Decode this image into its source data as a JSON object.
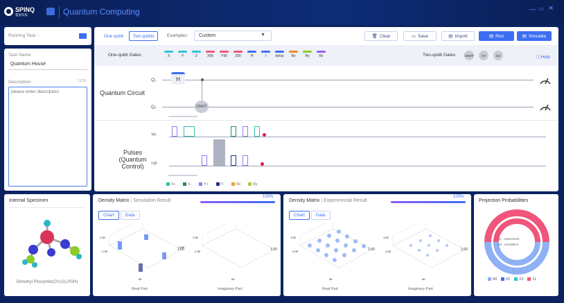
{
  "app": {
    "brand": "SPINQ",
    "brand_sub": "量旋科技",
    "title": "Quantum Computing"
  },
  "left": {
    "running_task_label": "Running Task: -",
    "task_name_label": "Task Name",
    "task_name_value": "Quantum House",
    "description_label": "Description",
    "description_counter": "13/30",
    "description_placeholder": "please enter description"
  },
  "toolbar": {
    "mode_tabs": [
      "One qubit",
      "Two qubits"
    ],
    "examples_label": "Examples:",
    "examples_value": "Custom",
    "clear": "Clear",
    "save": "Save",
    "import": "Import",
    "run": "Run",
    "simulate": "Simulate"
  },
  "gates": {
    "one_label": "One-qubit Gates",
    "one": [
      {
        "t": "X",
        "c": "#2fc4d6"
      },
      {
        "t": "Y",
        "c": "#2fc4d6"
      },
      {
        "t": "Z",
        "c": "#2fc4d6"
      },
      {
        "t": "X90",
        "c": "#f0557b"
      },
      {
        "t": "Y90",
        "c": "#f0557b"
      },
      {
        "t": "Z90",
        "c": "#f0557b"
      },
      {
        "t": "H",
        "c": "#3d6ef2"
      },
      {
        "t": "I",
        "c": "#3d6ef2"
      },
      {
        "t": "delay",
        "c": "#3d6ef2"
      },
      {
        "t": "Rx",
        "c": "#f08a1c"
      },
      {
        "t": "Ry",
        "c": "#8ccb2a"
      },
      {
        "t": "Rz",
        "c": "#9a5cf0"
      }
    ],
    "two_label": "Two-qubit Gates",
    "two": [
      "CNOT",
      "CY",
      "CZ"
    ],
    "help": "Help"
  },
  "circuit": {
    "label": "Quantum Circuit",
    "q0": "Q₁",
    "q1": "Q₂",
    "h_gate": "H",
    "cnot_gate": "CNOT"
  },
  "pulses": {
    "label": "Pulses (Quantum Control)",
    "ch1": "¹H",
    "ch2": "³¹P",
    "legend": [
      {
        "t": "X+",
        "c": "#2fc4a6"
      },
      {
        "t": "X-",
        "c": "#1e8a72"
      },
      {
        "t": "Y+",
        "c": "#8f7cf0"
      },
      {
        "t": "Y-",
        "c": "#23318a"
      },
      {
        "t": "Rx",
        "c": "#e8a23a"
      },
      {
        "t": "Ry",
        "c": "#b8c640"
      }
    ]
  },
  "specimen": {
    "title": "Internal Specimen",
    "caption": "Dimethyl Phosphite(CH₃O)₂POH)"
  },
  "dm_sim": {
    "title": "Density Matrix",
    "sub": "Simulation Result",
    "percent": "100%",
    "tabs": [
      "Chart",
      "Data"
    ],
    "real": "Real Part",
    "imag": "Imaginary Part",
    "z_top": "1.00",
    "z_bottom": "-1.00",
    "z_right": "1.00"
  },
  "dm_exp": {
    "title": "Density Matrix",
    "sub": "Experimental Result",
    "percent": "100%",
    "tabs": [
      "Chart",
      "Data"
    ],
    "real": "Real Part",
    "imag": "Imaginary Part",
    "z_top": "1.00",
    "z_bottom": "-1.00",
    "z_right": "1.00"
  },
  "proj": {
    "title": "Projection Probabilities",
    "inner_labels": [
      "in : experiment",
      "out : simulation"
    ],
    "legend": [
      {
        "t": "00",
        "c": "#8fb0f5"
      },
      {
        "t": "01",
        "c": "#3d6ef2"
      },
      {
        "t": "10",
        "c": "#2fc4d6"
      },
      {
        "t": "11",
        "c": "#f0557b"
      }
    ]
  }
}
